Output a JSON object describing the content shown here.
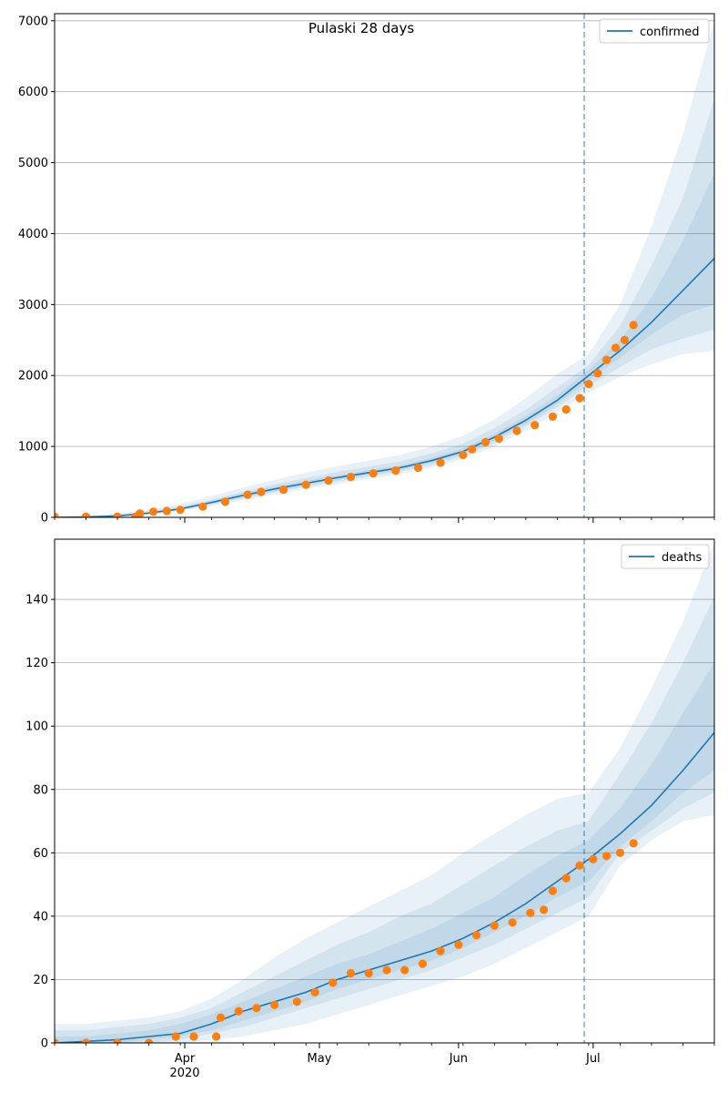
{
  "title": "Pulaski 28 days",
  "chart_data": [
    {
      "type": "line",
      "title": "Pulaski 28 days",
      "xlabel": "",
      "ylabel": "",
      "x_range": [
        "2020-03-03",
        "2020-07-28"
      ],
      "ylim": [
        0,
        7100
      ],
      "yticks": [
        0,
        1000,
        2000,
        3000,
        4000,
        5000,
        6000,
        7000
      ],
      "ytick_labels": [
        "0",
        "1000",
        "2000",
        "3000",
        "4000",
        "5000",
        "6000",
        "7000"
      ],
      "grid": "horizontal",
      "legend": {
        "position": "top-right",
        "entries": [
          "confirmed"
        ]
      },
      "forecast_start": "2020-06-29",
      "series": [
        {
          "name": "confirmed",
          "kind": "model-line",
          "color": "#1f77b4",
          "x": [
            "2020-03-03",
            "2020-03-10",
            "2020-03-17",
            "2020-03-24",
            "2020-03-31",
            "2020-04-07",
            "2020-04-14",
            "2020-04-21",
            "2020-04-28",
            "2020-05-05",
            "2020-05-12",
            "2020-05-19",
            "2020-05-26",
            "2020-06-02",
            "2020-06-09",
            "2020-06-16",
            "2020-06-23",
            "2020-06-30",
            "2020-07-07",
            "2020-07-14",
            "2020-07-21",
            "2020-07-28"
          ],
          "values": [
            0,
            5,
            20,
            60,
            120,
            210,
            310,
            400,
            480,
            560,
            630,
            700,
            800,
            930,
            1130,
            1370,
            1650,
            2000,
            2350,
            2750,
            3200,
            3650
          ],
          "bands": [
            {
              "lower": [
                0,
                0,
                5,
                40,
                90,
                160,
                240,
                320,
                400,
                470,
                540,
                610,
                700,
                820,
                1000,
                1220,
                1480,
                1760,
                1980,
                2160,
                2300,
                2350
              ],
              "upper": [
                0,
                20,
                50,
                110,
                190,
                300,
                420,
                530,
                630,
                720,
                800,
                880,
                1000,
                1150,
                1380,
                1680,
                2020,
                2300,
                3000,
                4100,
                5400,
                7000
              ]
            },
            {
              "lower": [
                0,
                2,
                10,
                48,
                102,
                180,
                265,
                350,
                430,
                505,
                575,
                645,
                735,
                860,
                1050,
                1280,
                1550,
                1850,
                2120,
                2370,
                2520,
                2650
              ],
              "upper": [
                0,
                12,
                35,
                85,
                155,
                250,
                365,
                465,
                555,
                640,
                715,
                790,
                900,
                1040,
                1260,
                1520,
                1830,
                2150,
                2700,
                3550,
                4500,
                5900
              ]
            },
            {
              "lower": [
                0,
                3,
                14,
                53,
                110,
                192,
                283,
                370,
                452,
                530,
                600,
                672,
                765,
                892,
                1087,
                1320,
                1595,
                1930,
                2250,
                2580,
                2860,
                3000
              ],
              "upper": [
                0,
                8,
                27,
                70,
                133,
                230,
                340,
                435,
                515,
                595,
                665,
                735,
                840,
                975,
                1180,
                1430,
                1720,
                2080,
                2500,
                3100,
                3900,
                4850
              ]
            }
          ]
        },
        {
          "name": "",
          "kind": "observed-points",
          "color": "#ff7f0e",
          "x": [
            "2020-03-03",
            "2020-03-10",
            "2020-03-17",
            "2020-03-21",
            "2020-03-22",
            "2020-03-25",
            "2020-03-28",
            "2020-03-31",
            "2020-04-05",
            "2020-04-10",
            "2020-04-15",
            "2020-04-18",
            "2020-04-23",
            "2020-04-28",
            "2020-05-03",
            "2020-05-08",
            "2020-05-13",
            "2020-05-18",
            "2020-05-23",
            "2020-05-28",
            "2020-06-02",
            "2020-06-04",
            "2020-06-07",
            "2020-06-10",
            "2020-06-14",
            "2020-06-18",
            "2020-06-22",
            "2020-06-25",
            "2020-06-28",
            "2020-06-30",
            "2020-07-02",
            "2020-07-04",
            "2020-07-06",
            "2020-07-08",
            "2020-07-10"
          ],
          "values": [
            10,
            10,
            10,
            10,
            55,
            80,
            90,
            105,
            150,
            220,
            320,
            360,
            390,
            460,
            520,
            570,
            620,
            660,
            700,
            770,
            880,
            960,
            1060,
            1110,
            1220,
            1300,
            1420,
            1520,
            1680,
            1880,
            2030,
            2220,
            2390,
            2500,
            2710
          ]
        }
      ]
    },
    {
      "type": "line",
      "title": "",
      "xlabel": "",
      "ylabel": "",
      "x_range": [
        "2020-03-03",
        "2020-07-28"
      ],
      "ylim": [
        0,
        159
      ],
      "yticks": [
        0,
        20,
        40,
        60,
        80,
        100,
        120,
        140
      ],
      "ytick_labels": [
        "0",
        "20",
        "40",
        "60",
        "80",
        "100",
        "120",
        "140"
      ],
      "xticks": [
        "2020-04-01",
        "2020-05-01",
        "2020-06-01",
        "2020-07-01"
      ],
      "xtick_labels": [
        "Apr",
        "May",
        "Jun",
        "Jul"
      ],
      "xtick_sublabel": "2020",
      "grid": "horizontal",
      "legend": {
        "position": "top-right",
        "entries": [
          "deaths"
        ]
      },
      "forecast_start": "2020-06-29",
      "series": [
        {
          "name": "deaths",
          "kind": "model-line",
          "color": "#1f77b4",
          "x": [
            "2020-03-03",
            "2020-03-10",
            "2020-03-17",
            "2020-03-24",
            "2020-03-31",
            "2020-04-07",
            "2020-04-14",
            "2020-04-21",
            "2020-04-28",
            "2020-05-05",
            "2020-05-12",
            "2020-05-19",
            "2020-05-26",
            "2020-06-02",
            "2020-06-09",
            "2020-06-16",
            "2020-06-23",
            "2020-06-30",
            "2020-07-07",
            "2020-07-14",
            "2020-07-21",
            "2020-07-28"
          ],
          "values": [
            0,
            0.5,
            1,
            2,
            3,
            6,
            10,
            13,
            16,
            20,
            23,
            26,
            29,
            33,
            38,
            44,
            51,
            58,
            66,
            75,
            86,
            98
          ],
          "bands": [
            {
              "lower": [
                0,
                0,
                0,
                0,
                0,
                1,
                2,
                4,
                6,
                9,
                12,
                15,
                18,
                21,
                25,
                30,
                35,
                40,
                56,
                64,
                70,
                72
              ],
              "upper": [
                6,
                6,
                7,
                8,
                10,
                14,
                20,
                27,
                33,
                38,
                43,
                48,
                53,
                60,
                66,
                72,
                77,
                79,
                93,
                112,
                133,
                158
              ]
            },
            {
              "lower": [
                0,
                0,
                0,
                0,
                1,
                3,
                5,
                8,
                11,
                14,
                17,
                20,
                23,
                27,
                31,
                36,
                41,
                46,
                60,
                67,
                74,
                79
              ],
              "upper": [
                4,
                4,
                5,
                6,
                8,
                11,
                16,
                21,
                26,
                31,
                35,
                40,
                44,
                50,
                56,
                62,
                67,
                70,
                85,
                101,
                120,
                141
              ]
            },
            {
              "lower": [
                0,
                0,
                0,
                1,
                2,
                4,
                7,
                10,
                13,
                17,
                20,
                23,
                26,
                30,
                35,
                40,
                46,
                51,
                62,
                70,
                79,
                86
              ],
              "upper": [
                2,
                2,
                3,
                4,
                6,
                9,
                13,
                17,
                21,
                25,
                28,
                32,
                36,
                41,
                46,
                53,
                59,
                64,
                74,
                88,
                104,
                120
              ]
            }
          ]
        },
        {
          "name": "",
          "kind": "observed-points",
          "color": "#ff7f0e",
          "x": [
            "2020-03-03",
            "2020-03-10",
            "2020-03-17",
            "2020-03-24",
            "2020-03-30",
            "2020-04-03",
            "2020-04-08",
            "2020-04-09",
            "2020-04-13",
            "2020-04-17",
            "2020-04-21",
            "2020-04-26",
            "2020-04-30",
            "2020-05-04",
            "2020-05-08",
            "2020-05-12",
            "2020-05-16",
            "2020-05-20",
            "2020-05-24",
            "2020-05-28",
            "2020-06-01",
            "2020-06-05",
            "2020-06-09",
            "2020-06-13",
            "2020-06-17",
            "2020-06-20",
            "2020-06-22",
            "2020-06-25",
            "2020-06-28",
            "2020-07-01",
            "2020-07-04",
            "2020-07-07",
            "2020-07-10"
          ],
          "values": [
            0,
            0,
            0,
            0,
            2,
            2,
            2,
            8,
            10,
            11,
            12,
            13,
            16,
            19,
            22,
            22,
            23,
            23,
            25,
            29,
            31,
            34,
            37,
            38,
            41,
            42,
            48,
            52,
            56,
            58,
            59,
            60,
            63
          ]
        }
      ]
    }
  ]
}
